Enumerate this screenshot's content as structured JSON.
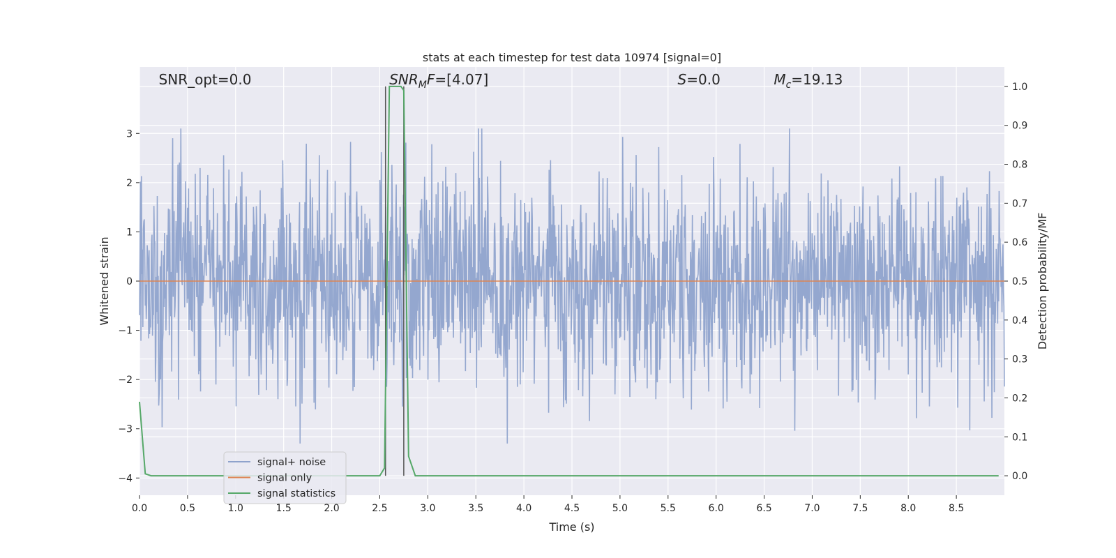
{
  "chart_data": {
    "type": "line",
    "title": "stats at each timestep for test data 10974 [signal=0]",
    "xlabel": "Time (s)",
    "ylabel": "Whitened strain",
    "y2label": "Detection probability/MF",
    "xlim": [
      0.0,
      9.0
    ],
    "ylim": [
      -4.35,
      4.35
    ],
    "y2lim": [
      -0.05,
      1.05
    ],
    "xticks": [
      "0.0",
      "0.5",
      "1.0",
      "1.5",
      "2.0",
      "2.5",
      "3.0",
      "3.5",
      "4.0",
      "4.5",
      "5.0",
      "5.5",
      "6.0",
      "6.5",
      "7.0",
      "7.5",
      "8.0",
      "8.5"
    ],
    "yticks": [
      "3",
      "2",
      "1",
      "0",
      "−1",
      "−2",
      "−3",
      "−4"
    ],
    "y2ticks": [
      "1.0",
      "0.9",
      "0.8",
      "0.7",
      "0.6",
      "0.5",
      "0.4",
      "0.3",
      "0.2",
      "0.1",
      "0.0"
    ],
    "grid": true,
    "legend_position": "lower-left",
    "annotations": [
      {
        "kind": "plain",
        "text": "SNR_opt=0.0",
        "x": 0.2
      },
      {
        "kind": "snrmf",
        "text": "=[4.07]",
        "x": 2.6
      },
      {
        "kind": "s",
        "text": "=0.0",
        "x": 5.6
      },
      {
        "kind": "mc",
        "text": "=19.13",
        "x": 6.6
      }
    ],
    "vlines": [
      2.56,
      2.75
    ],
    "series": [
      {
        "name": "signal+ noise",
        "color": "#8fa3cc",
        "axis": "left",
        "style": "noise",
        "n": 1800,
        "seed": 10974,
        "typical_amplitude": 1.1,
        "extreme_range": [
          -3.3,
          3.1
        ]
      },
      {
        "name": "signal only",
        "color": "#dd8452",
        "axis": "left",
        "x": [
          0.0,
          9.0
        ],
        "y": [
          0.0,
          0.0
        ]
      },
      {
        "name": "signal statistics",
        "color": "#55a868",
        "axis": "right",
        "x": [
          0.0,
          0.06,
          0.12,
          0.5,
          1.0,
          1.5,
          2.0,
          2.5,
          2.55,
          2.6,
          2.65,
          2.72,
          2.75,
          2.8,
          2.87,
          3.0,
          4.0,
          5.0,
          6.0,
          7.0,
          8.0,
          8.94
        ],
        "y": [
          0.19,
          0.005,
          0.0,
          0.0,
          0.0,
          0.0,
          0.0,
          0.0,
          0.02,
          1.0,
          1.0,
          1.0,
          0.99,
          0.05,
          0.0,
          0.0,
          0.0,
          0.0,
          0.0,
          0.0,
          0.0,
          0.0
        ]
      }
    ]
  }
}
